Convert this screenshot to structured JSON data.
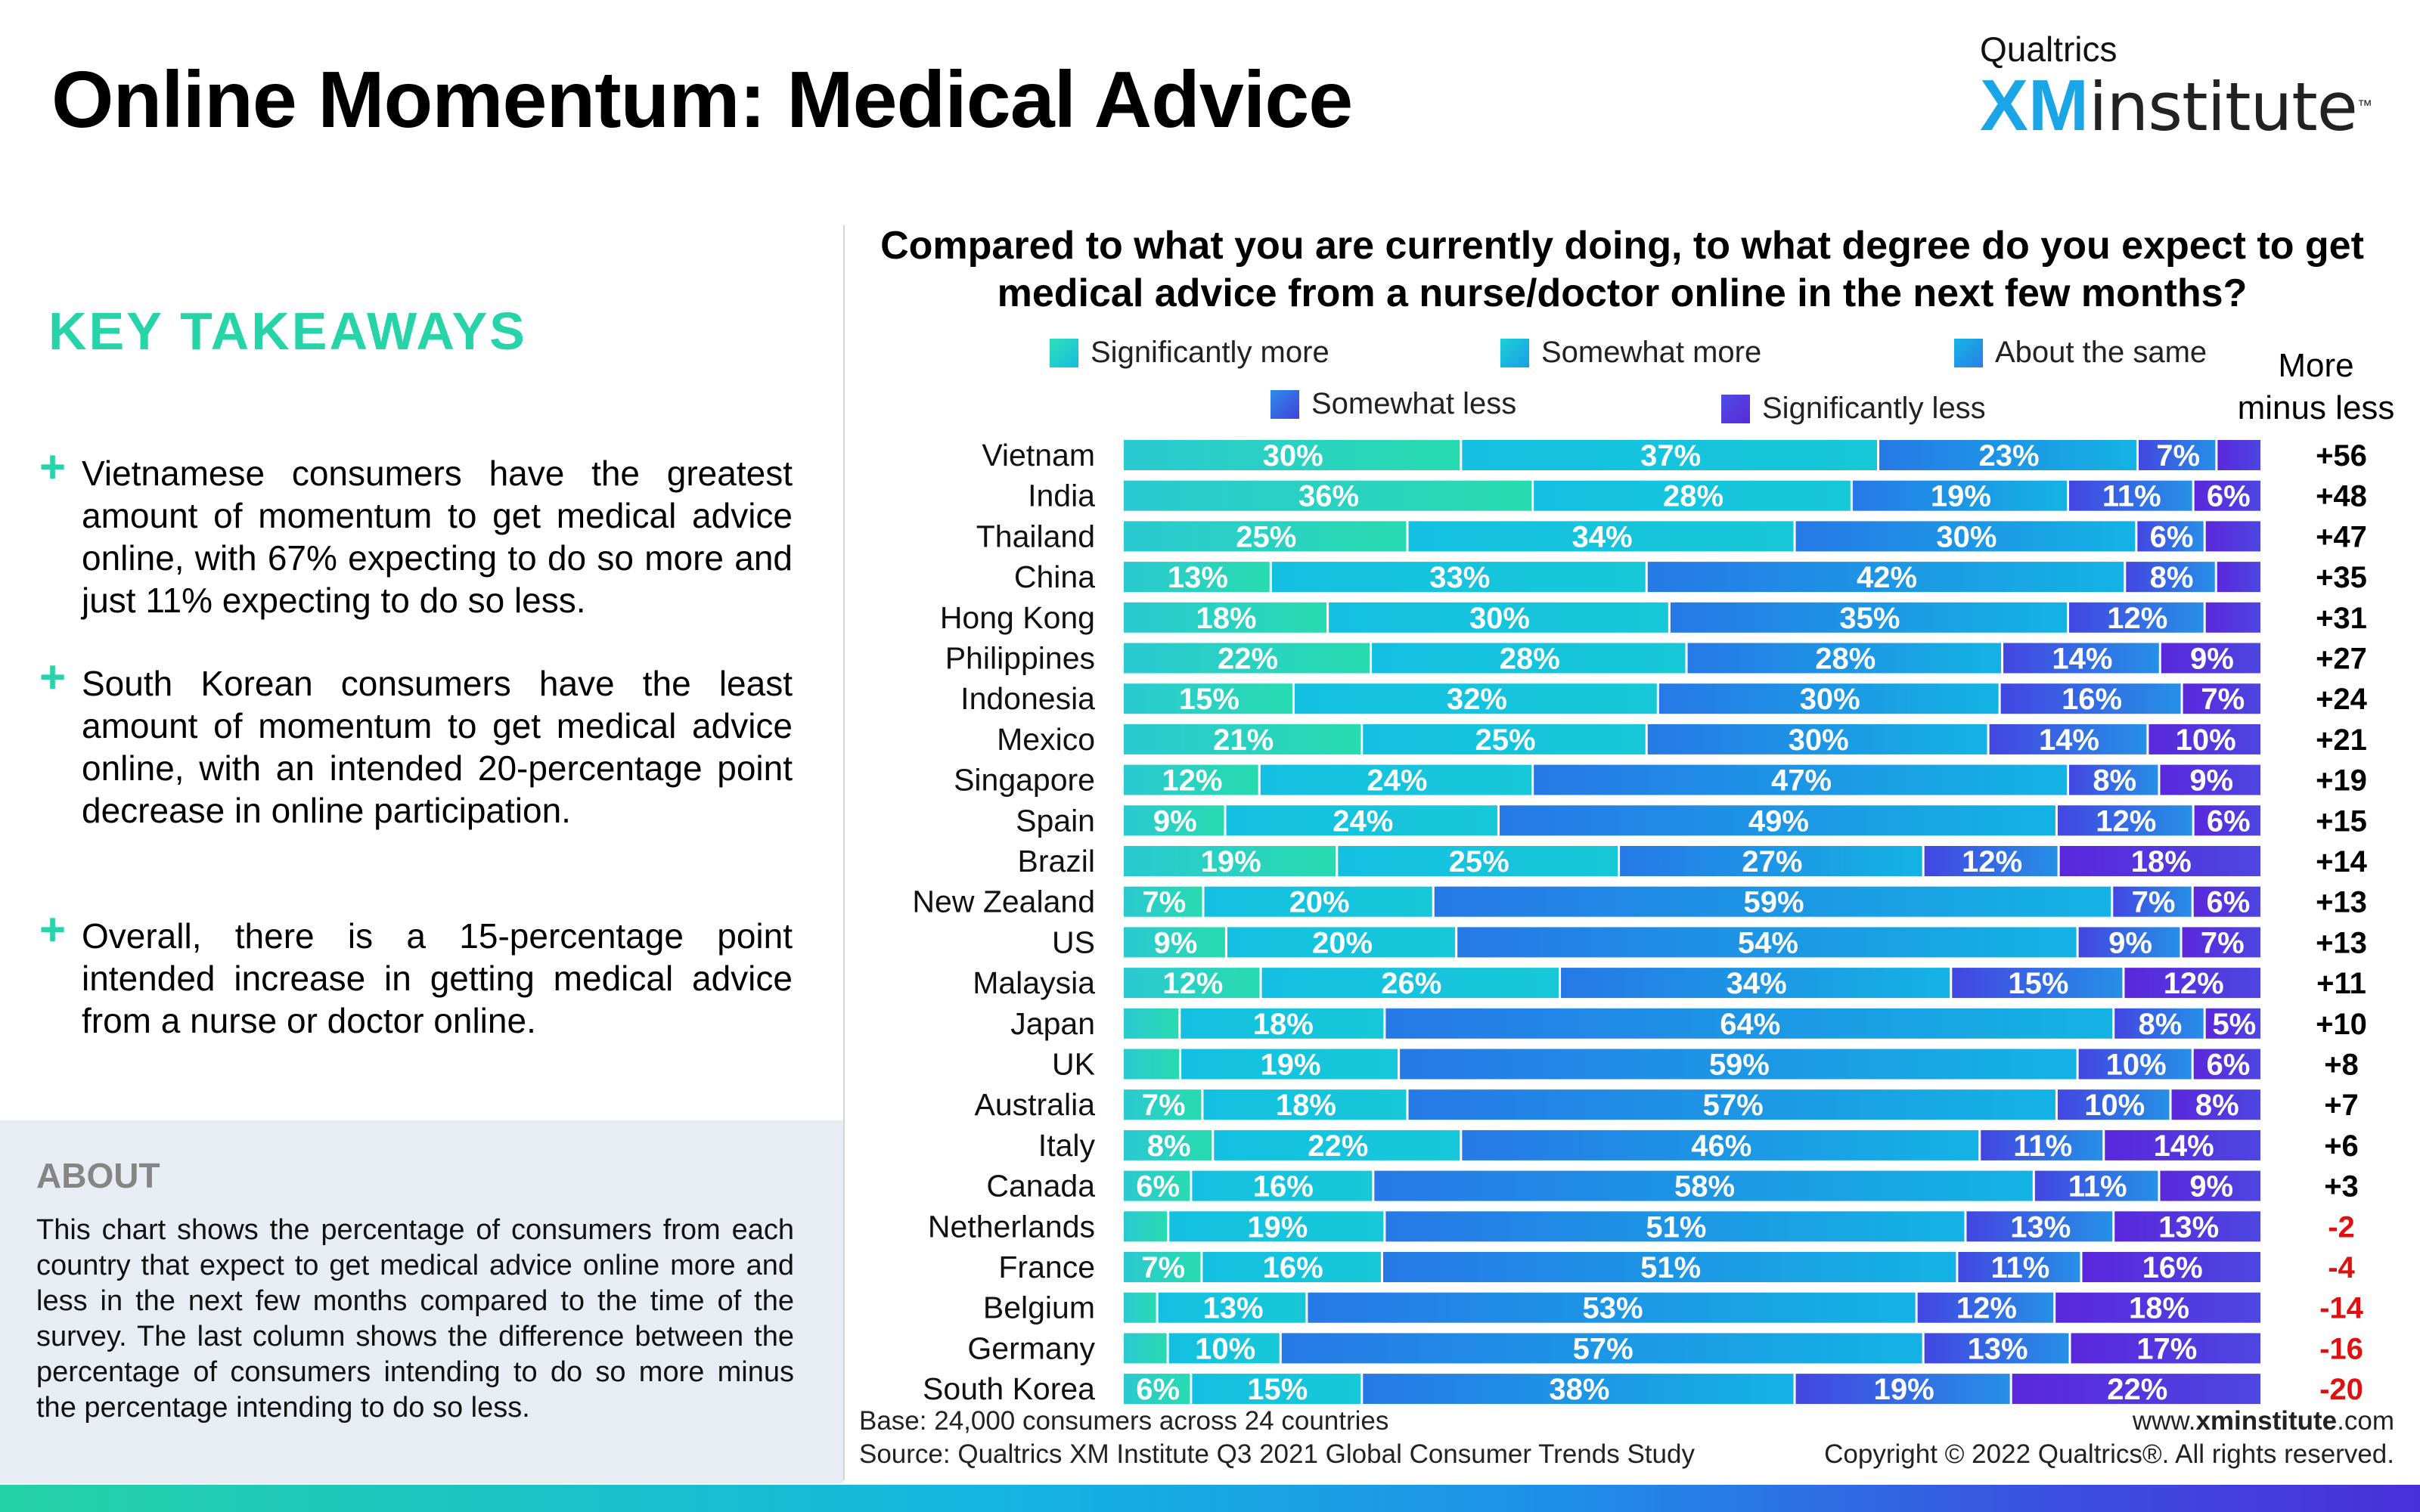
{
  "page": {
    "title": "Online Momentum: Medical Advice",
    "logo_top": "Qualtrics",
    "logo_xm": "XM",
    "logo_institute": "institute",
    "logo_tm": "™"
  },
  "key_takeaways": {
    "heading": "KEY TAKEAWAYS",
    "items": [
      "Vietnamese consumers have the greatest amount of momentum to get medical advice online, with 67% expecting to do so more and just 11% expecting to do so less.",
      "South Korean consumers have the least amount of momentum to get medical advice online, with an intended 20-percentage point decrease in online participation.",
      "Overall, there is a 15-percentage point intended increase in getting medical advice from a nurse or doctor online."
    ]
  },
  "about": {
    "title": "ABOUT",
    "text": "This chart shows the percentage of consumers from each country that expect to get medical advice online more and less in the next few months compared to the time of the survey. The last column shows the difference between the percentage of consumers intending to do so more minus the percentage intending to do so less."
  },
  "colors": {
    "significantly_more": "#27d3b2",
    "somewhat_more": "#14bde2",
    "about_same": "#1d9ae6",
    "somewhat_less": "#3a62e4",
    "significantly_less": "#5b32e0",
    "positive_value": "#000000",
    "negative_value": "#e01010",
    "accent": "#27d3a8"
  },
  "chart_data": {
    "type": "bar",
    "orientation": "horizontal",
    "stacked": true,
    "title": "Compared to what you are currently doing, to what degree do you expect to get medical advice from a nurse/doctor online in the next few months?",
    "value_column_header": "More minus less",
    "legend_placement": "top",
    "xlim": [
      0,
      100
    ],
    "categories": [
      "Vietnam",
      "India",
      "Thailand",
      "China",
      "Hong Kong",
      "Philippines",
      "Indonesia",
      "Mexico",
      "Singapore",
      "Spain",
      "Brazil",
      "New Zealand",
      "US",
      "Malaysia",
      "Japan",
      "UK",
      "Australia",
      "Italy",
      "Canada",
      "Netherlands",
      "France",
      "Belgium",
      "Germany",
      "South Korea"
    ],
    "series": [
      {
        "name": "Significantly more",
        "values": [
          30,
          36,
          25,
          13,
          18,
          22,
          15,
          21,
          12,
          9,
          19,
          7,
          9,
          12,
          5,
          5,
          7,
          8,
          6,
          4,
          7,
          3,
          4,
          6
        ]
      },
      {
        "name": "Somewhat more",
        "values": [
          37,
          28,
          34,
          33,
          30,
          28,
          32,
          25,
          24,
          24,
          25,
          20,
          20,
          26,
          18,
          19,
          18,
          22,
          16,
          19,
          16,
          13,
          10,
          15
        ]
      },
      {
        "name": "About the same",
        "values": [
          23,
          19,
          30,
          42,
          35,
          28,
          30,
          30,
          47,
          49,
          27,
          59,
          54,
          34,
          64,
          59,
          57,
          46,
          58,
          51,
          51,
          53,
          57,
          38
        ]
      },
      {
        "name": "Somewhat less",
        "values": [
          7,
          11,
          6,
          8,
          12,
          14,
          16,
          14,
          8,
          12,
          12,
          7,
          9,
          15,
          8,
          10,
          10,
          11,
          11,
          13,
          11,
          12,
          13,
          19
        ]
      },
      {
        "name": "Significantly less",
        "values": [
          4,
          6,
          5,
          4,
          5,
          9,
          7,
          10,
          9,
          6,
          18,
          6,
          7,
          12,
          5,
          6,
          8,
          14,
          9,
          13,
          16,
          18,
          17,
          22
        ]
      }
    ],
    "more_minus_less": [
      "+56",
      "+48",
      "+47",
      "+35",
      "+31",
      "+27",
      "+24",
      "+21",
      "+19",
      "+15",
      "+14",
      "+13",
      "+13",
      "+11",
      "+10",
      "+8",
      "+7",
      "+6",
      "+3",
      "-2",
      "-4",
      "-14",
      "-16",
      "-20"
    ],
    "hidden_labels": [
      [
        false,
        false,
        false,
        false,
        true
      ],
      [
        false,
        false,
        false,
        false,
        false
      ],
      [
        false,
        false,
        false,
        false,
        true
      ],
      [
        false,
        false,
        false,
        false,
        true
      ],
      [
        false,
        false,
        false,
        false,
        true
      ],
      [
        false,
        false,
        false,
        false,
        false
      ],
      [
        false,
        false,
        false,
        false,
        false
      ],
      [
        false,
        false,
        false,
        false,
        false
      ],
      [
        false,
        false,
        false,
        false,
        false
      ],
      [
        false,
        false,
        false,
        false,
        false
      ],
      [
        false,
        false,
        false,
        false,
        false
      ],
      [
        false,
        false,
        false,
        false,
        false
      ],
      [
        false,
        false,
        false,
        false,
        false
      ],
      [
        false,
        false,
        false,
        false,
        false
      ],
      [
        true,
        false,
        false,
        false,
        false
      ],
      [
        true,
        false,
        false,
        false,
        false
      ],
      [
        false,
        false,
        false,
        false,
        false
      ],
      [
        false,
        false,
        false,
        false,
        false
      ],
      [
        false,
        false,
        false,
        false,
        false
      ],
      [
        true,
        false,
        false,
        false,
        false
      ],
      [
        false,
        false,
        false,
        false,
        false
      ],
      [
        true,
        false,
        false,
        false,
        false
      ],
      [
        true,
        false,
        false,
        false,
        false
      ],
      [
        false,
        false,
        false,
        false,
        false
      ]
    ]
  },
  "footer": {
    "base": "Base: 24,000 consumers across 24 countries",
    "source": "Source: Qualtrics XM Institute Q3 2021 Global Consumer Trends Study",
    "website_prefix": "www.",
    "website_bold": "xminstitute",
    "website_suffix": ".com",
    "copyright": "Copyright © 2022 Qualtrics®. All rights reserved."
  }
}
